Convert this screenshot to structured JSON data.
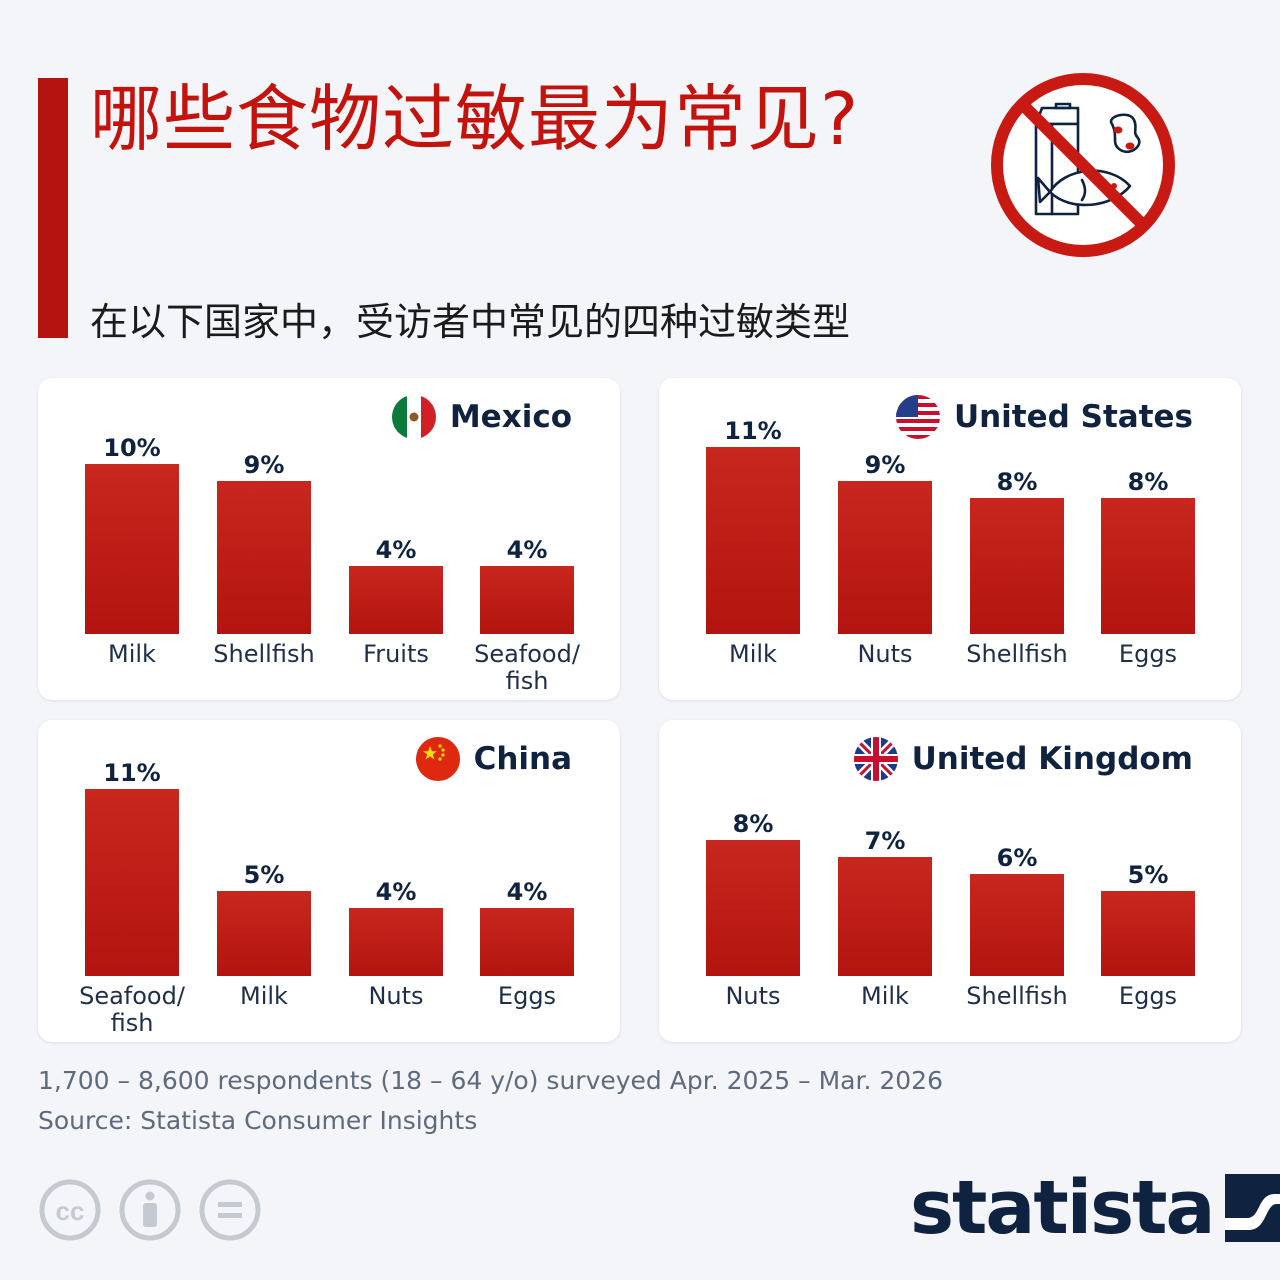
{
  "header": {
    "title": "哪些食物过敏最为常见?",
    "subtitle": "在以下国家中，受访者中常见的四种过敏类型"
  },
  "colors": {
    "bar": "#b3140f",
    "bar_light": "#c8271e",
    "accent": "#c4120d",
    "navy": "#0f2240"
  },
  "chart_data": [
    {
      "type": "bar",
      "title": "Mexico",
      "flag": "mexico-flag-icon",
      "categories": [
        "Milk",
        "Shellfish",
        "Fruits",
        "Seafood/\nfish"
      ],
      "values": [
        10,
        9,
        4,
        4
      ],
      "value_labels": [
        "10%",
        "9%",
        "4%",
        "4%"
      ]
    },
    {
      "type": "bar",
      "title": "United States",
      "flag": "us-flag-icon",
      "categories": [
        "Milk",
        "Nuts",
        "Shellfish",
        "Eggs"
      ],
      "values": [
        11,
        9,
        8,
        8
      ],
      "value_labels": [
        "11%",
        "9%",
        "8%",
        "8%"
      ]
    },
    {
      "type": "bar",
      "title": "China",
      "flag": "china-flag-icon",
      "categories": [
        "Seafood/\nfish",
        "Milk",
        "Nuts",
        "Eggs"
      ],
      "values": [
        11,
        5,
        4,
        4
      ],
      "value_labels": [
        "11%",
        "5%",
        "4%",
        "4%"
      ]
    },
    {
      "type": "bar",
      "title": "United Kingdom",
      "flag": "uk-flag-icon",
      "categories": [
        "Nuts",
        "Milk",
        "Shellfish",
        "Eggs"
      ],
      "values": [
        8,
        7,
        6,
        5
      ],
      "value_labels": [
        "8%",
        "7%",
        "6%",
        "5%"
      ]
    }
  ],
  "footer": {
    "note": "1,700 – 8,600 respondents (18 – 64 y/o) surveyed Apr. 2025 – Mar. 2026",
    "source": "Source: Statista Consumer Insights",
    "brand": "statista",
    "license_icons": [
      "cc-icon",
      "attribution-icon",
      "no-derivatives-icon"
    ]
  }
}
